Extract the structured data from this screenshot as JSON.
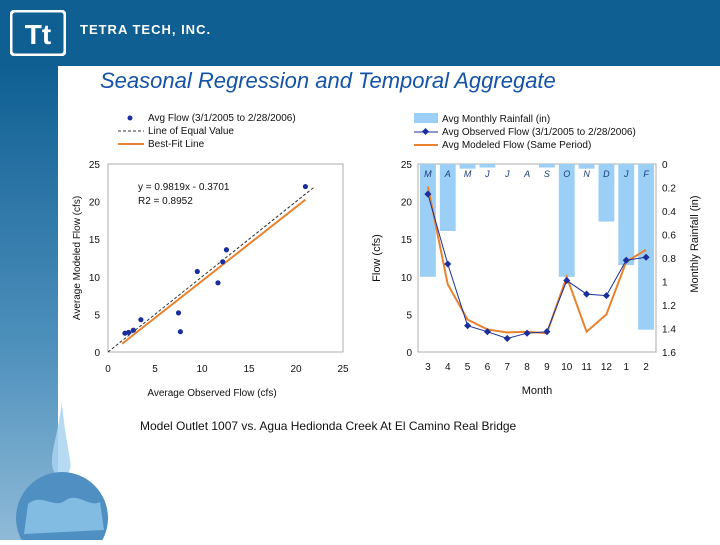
{
  "header": {
    "company_name": "TETRA TECH, INC.",
    "logo_text": "Tt"
  },
  "slide": {
    "title": "Seasonal Regression and Temporal Aggregate",
    "caption": "Model Outlet 1007 vs. Agua Hedionda Creek At El Camino Real Bridge"
  },
  "colors": {
    "header": "#0f5f93",
    "title": "#1553a8",
    "observed": "#1a2f9c",
    "modeled": "#e8822f",
    "rainfall": "#9ccff5"
  },
  "chart_data": [
    {
      "type": "scatter",
      "title": "",
      "xlabel": "Average Observed Flow (cfs)",
      "ylabel": "Average Modeled Flow (cfs)",
      "xlim": [
        0,
        25
      ],
      "ylim": [
        0,
        25
      ],
      "xticks": [
        0,
        5,
        10,
        15,
        20,
        25
      ],
      "yticks": [
        0,
        5,
        10,
        15,
        20,
        25
      ],
      "legend": [
        {
          "label": "Avg Flow (3/1/2005 to 2/28/2006)",
          "kind": "marker"
        },
        {
          "label": "Line of Equal Value",
          "kind": "dashed"
        },
        {
          "label": "Best-Fit Line",
          "kind": "line"
        }
      ],
      "equation": "y = 0.9819x - 0.3701",
      "r_squared": "R2 = 0.8952",
      "points": [
        {
          "x": 1.8,
          "y": 2.5
        },
        {
          "x": 2.2,
          "y": 2.6
        },
        {
          "x": 2.7,
          "y": 2.9
        },
        {
          "x": 3.5,
          "y": 4.3
        },
        {
          "x": 7.5,
          "y": 5.2
        },
        {
          "x": 7.7,
          "y": 2.7
        },
        {
          "x": 9.5,
          "y": 10.7
        },
        {
          "x": 11.7,
          "y": 9.2
        },
        {
          "x": 12.2,
          "y": 12.0
        },
        {
          "x": 12.6,
          "y": 13.6
        },
        {
          "x": 21.0,
          "y": 22.0
        }
      ],
      "equal_line": {
        "x": [
          0,
          22
        ],
        "y": [
          0,
          22
        ]
      },
      "fit_line": {
        "x": [
          1.5,
          21
        ],
        "y": [
          1.1,
          20.25
        ]
      }
    },
    {
      "type": "line",
      "title": "",
      "xlabel": "Month",
      "ylabel": "Flow (cfs)",
      "y2label": "Monthly Rainfall (in)",
      "categories": [
        "3",
        "4",
        "5",
        "6",
        "7",
        "8",
        "9",
        "10",
        "11",
        "12",
        "1",
        "2"
      ],
      "month_letters": [
        "M",
        "A",
        "M",
        "J",
        "J",
        "A",
        "S",
        "O",
        "N",
        "D",
        "J",
        "F"
      ],
      "ylim": [
        0,
        25
      ],
      "y2lim": [
        0,
        1.6
      ],
      "yticks": [
        0,
        5,
        10,
        15,
        20,
        25
      ],
      "y2ticks": [
        0,
        0.2,
        0.4,
        0.6,
        0.8,
        1,
        1.2,
        1.4,
        1.6
      ],
      "y2ticklabels": [
        "0",
        "0.2",
        "0.4",
        "0.6",
        "0.8",
        "1",
        "1.2",
        "1.4",
        "1.6"
      ],
      "y2_inverted": true,
      "legend": [
        {
          "label": "Avg Monthly Rainfall (in)",
          "kind": "bar"
        },
        {
          "label": "Avg Observed Flow (3/1/2005 to 2/28/2006)",
          "kind": "marker-line"
        },
        {
          "label": "Avg Modeled Flow (Same Period)",
          "kind": "line"
        }
      ],
      "rainfall": [
        0.96,
        0.57,
        0.04,
        0.03,
        0.0,
        0.0,
        0.03,
        0.96,
        0.04,
        0.49,
        0.86,
        1.41
      ],
      "series": [
        {
          "name": "Avg Observed Flow (3/1/2005 to 2/28/2006)",
          "values": [
            21.0,
            11.7,
            3.5,
            2.7,
            1.8,
            2.5,
            2.7,
            9.5,
            7.7,
            7.5,
            12.2,
            12.6
          ]
        },
        {
          "name": "Avg Modeled Flow (Same Period)",
          "values": [
            22.0,
            9.0,
            4.3,
            3.0,
            2.6,
            2.7,
            2.5,
            10.0,
            2.7,
            5.0,
            12.0,
            13.6
          ]
        }
      ]
    }
  ]
}
